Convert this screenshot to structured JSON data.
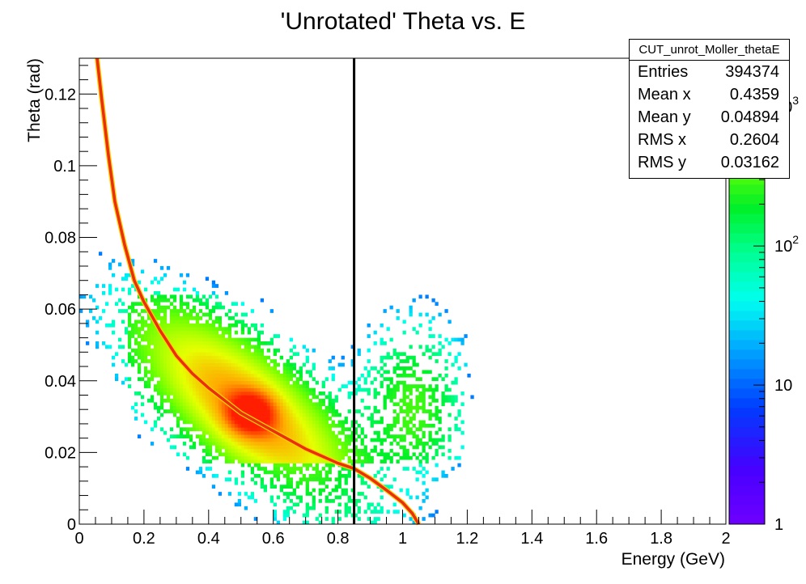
{
  "chart_data": {
    "type": "heatmap",
    "title": "'Unrotated' Theta vs. E",
    "xlabel": "Energy (GeV)",
    "ylabel": "Theta (rad)",
    "xlim": [
      0,
      2
    ],
    "ylim": [
      0,
      0.13
    ],
    "x_ticks": [
      "0",
      "0.2",
      "0.4",
      "0.6",
      "0.8",
      "1",
      "1.2",
      "1.4",
      "1.6",
      "1.8",
      "2"
    ],
    "y_ticks": [
      "0",
      "0.02",
      "0.04",
      "0.06",
      "0.08",
      "0.1",
      "0.12"
    ],
    "z_scale": "log",
    "z_ticks": [
      "1",
      "10",
      "10^2",
      "10^3"
    ],
    "vertical_line_x": 0.85,
    "kinematic_curve": [
      [
        0.055,
        0.13
      ],
      [
        0.07,
        0.118
      ],
      [
        0.09,
        0.103
      ],
      [
        0.11,
        0.09
      ],
      [
        0.14,
        0.078
      ],
      [
        0.17,
        0.068
      ],
      [
        0.2,
        0.062
      ],
      [
        0.25,
        0.054
      ],
      [
        0.3,
        0.047
      ],
      [
        0.35,
        0.042
      ],
      [
        0.4,
        0.038
      ],
      [
        0.5,
        0.031
      ],
      [
        0.6,
        0.026
      ],
      [
        0.7,
        0.021
      ],
      [
        0.8,
        0.017
      ],
      [
        0.85,
        0.0155
      ],
      [
        0.9,
        0.0128
      ],
      [
        0.95,
        0.0095
      ],
      [
        1.0,
        0.006
      ],
      [
        1.03,
        0.003
      ],
      [
        1.05,
        0.0
      ]
    ],
    "stats": {
      "name": "CUT_unrot_Moller_thetaE",
      "rows": [
        {
          "label": "Entries",
          "value": "394374"
        },
        {
          "label": "Mean x",
          "value": "0.4359"
        },
        {
          "label": "Mean y",
          "value": "0.04894"
        },
        {
          "label": "RMS x",
          "value": "0.2604"
        },
        {
          "label": "RMS y",
          "value": "0.03162"
        }
      ]
    }
  }
}
